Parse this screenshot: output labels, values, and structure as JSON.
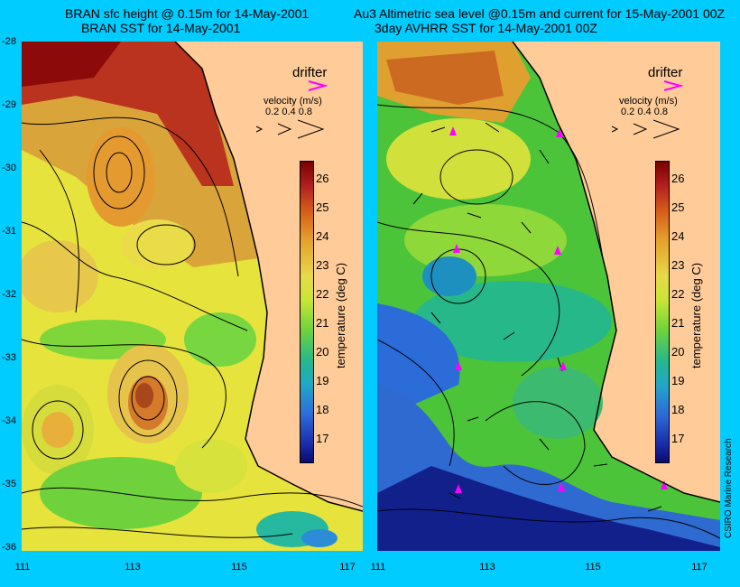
{
  "left": {
    "title_line1": "BRAN sfc height @ 0.15m for 14-May-2001",
    "title_line2": "BRAN SST for 14-May-2001"
  },
  "right": {
    "title_line1": "Au3 Altimetric sea level  @0.15m and current for 15-May-2001 00Z",
    "title_line2": "3day AVHRR SST for 14-May-2001 00Z"
  },
  "legend": {
    "drifter_label": "drifter",
    "velocity_label": "velocity (m/s)",
    "velocity_scale": "0.2 0.4 0.8"
  },
  "colorbar": {
    "unit_label": "temperature (deg C)",
    "ticks": [
      "26",
      "25",
      "24",
      "23",
      "22",
      "21",
      "20",
      "19",
      "18",
      "17"
    ],
    "range": [
      16.3,
      26.6
    ]
  },
  "axes": {
    "y_ticks": [
      "-28",
      "-29",
      "-30",
      "-31",
      "-32",
      "-33",
      "-34",
      "-35",
      "-36"
    ],
    "x_ticks": [
      "111",
      "113",
      "115",
      "117"
    ]
  },
  "credit": "CSIRO Marine Research",
  "colors": {
    "background": "#00ccff",
    "land": "#ffcc99",
    "drifter": "#ff00ff"
  }
}
